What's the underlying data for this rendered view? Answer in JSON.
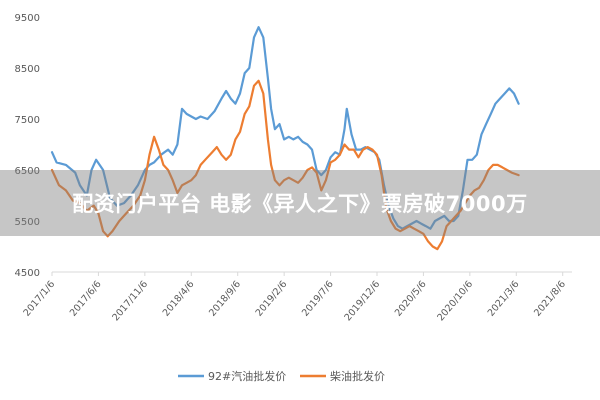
{
  "chart_data": {
    "type": "line",
    "ylim": [
      4500,
      9500
    ],
    "y_ticks": [
      4500,
      5500,
      6500,
      7500,
      8500,
      9500
    ],
    "x_tick_labels": [
      "2017/1/6",
      "2017/6/6",
      "2017/11/6",
      "2018/4/6",
      "2018/9/6",
      "2019/2/6",
      "2019/7/6",
      "2019/12/6",
      "2020/5/6",
      "2020/10/6",
      "2021/3/6",
      "2021/8/6"
    ],
    "x_range": [
      0,
      11.2
    ],
    "grid": false,
    "legend_position": "bottom",
    "colors": {
      "gasoline": "#5b9bd5",
      "diesel": "#ed7d31",
      "axis": "#d9d9d9",
      "tick_text": "#595959"
    },
    "series": [
      {
        "name": "92#汽油批发价",
        "points": [
          [
            0.0,
            6850
          ],
          [
            0.1,
            6650
          ],
          [
            0.3,
            6600
          ],
          [
            0.5,
            6450
          ],
          [
            0.6,
            6200
          ],
          [
            0.75,
            6000
          ],
          [
            0.85,
            6500
          ],
          [
            0.95,
            6700
          ],
          [
            1.1,
            6500
          ],
          [
            1.25,
            5950
          ],
          [
            1.4,
            5800
          ],
          [
            1.55,
            5850
          ],
          [
            1.7,
            6000
          ],
          [
            1.85,
            6200
          ],
          [
            2.0,
            6500
          ],
          [
            2.1,
            6600
          ],
          [
            2.2,
            6650
          ],
          [
            2.35,
            6800
          ],
          [
            2.5,
            6900
          ],
          [
            2.6,
            6800
          ],
          [
            2.7,
            7000
          ],
          [
            2.8,
            7700
          ],
          [
            2.9,
            7600
          ],
          [
            3.0,
            7550
          ],
          [
            3.1,
            7500
          ],
          [
            3.2,
            7550
          ],
          [
            3.35,
            7500
          ],
          [
            3.5,
            7650
          ],
          [
            3.65,
            7900
          ],
          [
            3.75,
            8050
          ],
          [
            3.85,
            7900
          ],
          [
            3.95,
            7800
          ],
          [
            4.05,
            8000
          ],
          [
            4.15,
            8400
          ],
          [
            4.25,
            8500
          ],
          [
            4.35,
            9100
          ],
          [
            4.45,
            9300
          ],
          [
            4.55,
            9100
          ],
          [
            4.65,
            8300
          ],
          [
            4.72,
            7700
          ],
          [
            4.8,
            7300
          ],
          [
            4.9,
            7400
          ],
          [
            5.0,
            7100
          ],
          [
            5.1,
            7150
          ],
          [
            5.2,
            7100
          ],
          [
            5.3,
            7150
          ],
          [
            5.4,
            7050
          ],
          [
            5.5,
            7000
          ],
          [
            5.6,
            6900
          ],
          [
            5.7,
            6500
          ],
          [
            5.8,
            6400
          ],
          [
            5.9,
            6500
          ],
          [
            6.0,
            6750
          ],
          [
            6.1,
            6850
          ],
          [
            6.2,
            6800
          ],
          [
            6.3,
            7300
          ],
          [
            6.35,
            7700
          ],
          [
            6.45,
            7200
          ],
          [
            6.55,
            6900
          ],
          [
            6.65,
            6900
          ],
          [
            6.75,
            6950
          ],
          [
            6.85,
            6900
          ],
          [
            6.95,
            6850
          ],
          [
            7.05,
            6700
          ],
          [
            7.15,
            6200
          ],
          [
            7.25,
            5800
          ],
          [
            7.35,
            5550
          ],
          [
            7.45,
            5400
          ],
          [
            7.55,
            5350
          ],
          [
            7.65,
            5400
          ],
          [
            7.75,
            5450
          ],
          [
            7.85,
            5500
          ],
          [
            7.95,
            5450
          ],
          [
            8.05,
            5400
          ],
          [
            8.15,
            5350
          ],
          [
            8.25,
            5500
          ],
          [
            8.35,
            5550
          ],
          [
            8.45,
            5600
          ],
          [
            8.55,
            5500
          ],
          [
            8.65,
            5500
          ],
          [
            8.75,
            5600
          ],
          [
            8.85,
            6100
          ],
          [
            8.95,
            6700
          ],
          [
            9.05,
            6700
          ],
          [
            9.15,
            6800
          ],
          [
            9.25,
            7200
          ],
          [
            9.35,
            7400
          ],
          [
            9.45,
            7600
          ],
          [
            9.55,
            7800
          ],
          [
            9.65,
            7900
          ],
          [
            9.75,
            8000
          ],
          [
            9.85,
            8100
          ],
          [
            9.95,
            8000
          ],
          [
            10.05,
            7800
          ]
        ]
      },
      {
        "name": "柴油批发价",
        "points": [
          [
            0.0,
            6500
          ],
          [
            0.15,
            6200
          ],
          [
            0.3,
            6100
          ],
          [
            0.45,
            5900
          ],
          [
            0.6,
            5850
          ],
          [
            0.75,
            5700
          ],
          [
            0.9,
            5800
          ],
          [
            1.0,
            5650
          ],
          [
            1.1,
            5300
          ],
          [
            1.2,
            5200
          ],
          [
            1.3,
            5300
          ],
          [
            1.45,
            5500
          ],
          [
            1.6,
            5650
          ],
          [
            1.75,
            5800
          ],
          [
            1.9,
            6000
          ],
          [
            2.0,
            6300
          ],
          [
            2.1,
            6800
          ],
          [
            2.2,
            7150
          ],
          [
            2.3,
            6900
          ],
          [
            2.4,
            6600
          ],
          [
            2.5,
            6500
          ],
          [
            2.6,
            6300
          ],
          [
            2.7,
            6050
          ],
          [
            2.8,
            6200
          ],
          [
            2.9,
            6250
          ],
          [
            3.0,
            6300
          ],
          [
            3.1,
            6400
          ],
          [
            3.2,
            6600
          ],
          [
            3.3,
            6700
          ],
          [
            3.45,
            6850
          ],
          [
            3.55,
            6950
          ],
          [
            3.65,
            6800
          ],
          [
            3.75,
            6700
          ],
          [
            3.85,
            6800
          ],
          [
            3.95,
            7100
          ],
          [
            4.05,
            7250
          ],
          [
            4.15,
            7600
          ],
          [
            4.25,
            7750
          ],
          [
            4.35,
            8150
          ],
          [
            4.45,
            8250
          ],
          [
            4.55,
            8000
          ],
          [
            4.65,
            7100
          ],
          [
            4.72,
            6600
          ],
          [
            4.8,
            6300
          ],
          [
            4.9,
            6200
          ],
          [
            5.0,
            6300
          ],
          [
            5.1,
            6350
          ],
          [
            5.2,
            6300
          ],
          [
            5.3,
            6250
          ],
          [
            5.4,
            6350
          ],
          [
            5.5,
            6500
          ],
          [
            5.6,
            6550
          ],
          [
            5.7,
            6450
          ],
          [
            5.8,
            6100
          ],
          [
            5.9,
            6300
          ],
          [
            6.0,
            6650
          ],
          [
            6.1,
            6700
          ],
          [
            6.2,
            6800
          ],
          [
            6.3,
            7000
          ],
          [
            6.4,
            6900
          ],
          [
            6.5,
            6900
          ],
          [
            6.6,
            6750
          ],
          [
            6.7,
            6900
          ],
          [
            6.8,
            6950
          ],
          [
            6.9,
            6900
          ],
          [
            7.0,
            6800
          ],
          [
            7.1,
            6400
          ],
          [
            7.2,
            5750
          ],
          [
            7.3,
            5500
          ],
          [
            7.4,
            5350
          ],
          [
            7.5,
            5300
          ],
          [
            7.6,
            5350
          ],
          [
            7.7,
            5400
          ],
          [
            7.8,
            5350
          ],
          [
            7.9,
            5300
          ],
          [
            8.0,
            5250
          ],
          [
            8.1,
            5100
          ],
          [
            8.2,
            5000
          ],
          [
            8.3,
            4950
          ],
          [
            8.4,
            5100
          ],
          [
            8.5,
            5400
          ],
          [
            8.6,
            5500
          ],
          [
            8.7,
            5600
          ],
          [
            8.8,
            5700
          ],
          [
            8.9,
            5850
          ],
          [
            9.0,
            6000
          ],
          [
            9.1,
            6100
          ],
          [
            9.2,
            6150
          ],
          [
            9.3,
            6300
          ],
          [
            9.4,
            6500
          ],
          [
            9.5,
            6600
          ],
          [
            9.6,
            6600
          ],
          [
            9.7,
            6550
          ],
          [
            9.8,
            6500
          ],
          [
            9.9,
            6450
          ],
          [
            10.05,
            6400
          ]
        ]
      }
    ]
  },
  "overlay": {
    "text": "配资门户平台 电影《异人之下》票房破7000万"
  }
}
